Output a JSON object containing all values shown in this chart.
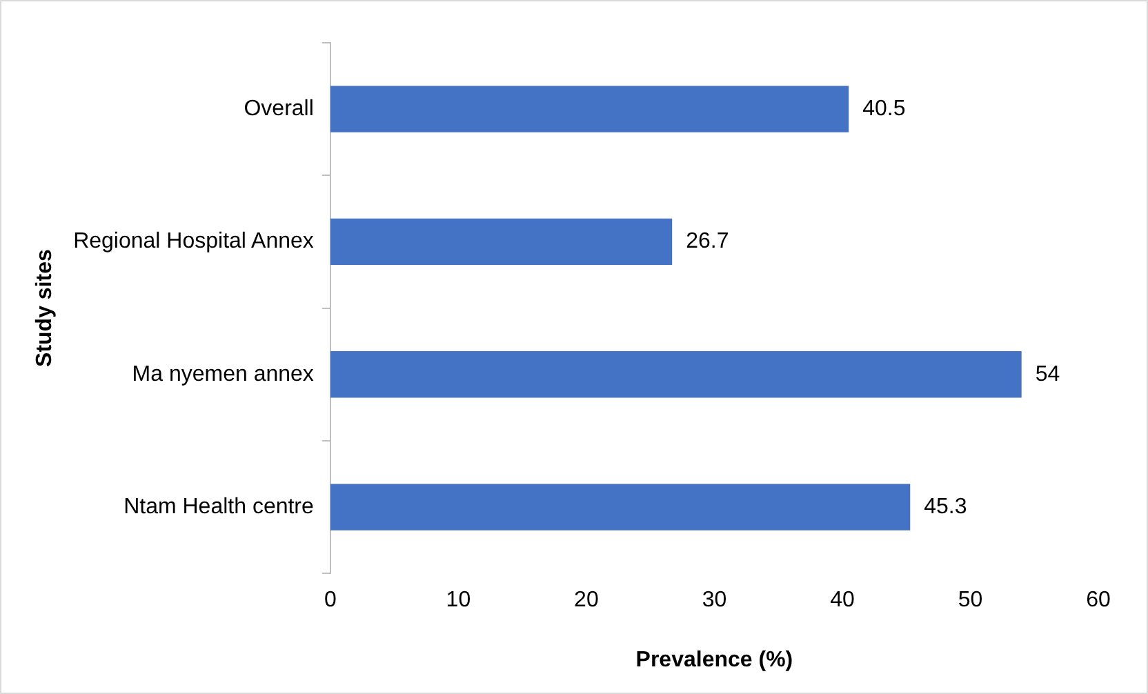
{
  "chart_data": {
    "type": "bar",
    "orientation": "horizontal",
    "xlabel": "Prevalence (%)",
    "ylabel": "Study sites",
    "categories": [
      "Overall",
      "Regional Hospital Annex",
      "Ma nyemen annex",
      "Ntam Health centre"
    ],
    "values": [
      40.5,
      26.7,
      54,
      45.3
    ],
    "color": "#4472c4",
    "xlim": [
      0,
      60
    ],
    "xticks": [
      0,
      10,
      20,
      30,
      40,
      50,
      60
    ],
    "grid": false,
    "legend": false,
    "data_labels": true
  }
}
